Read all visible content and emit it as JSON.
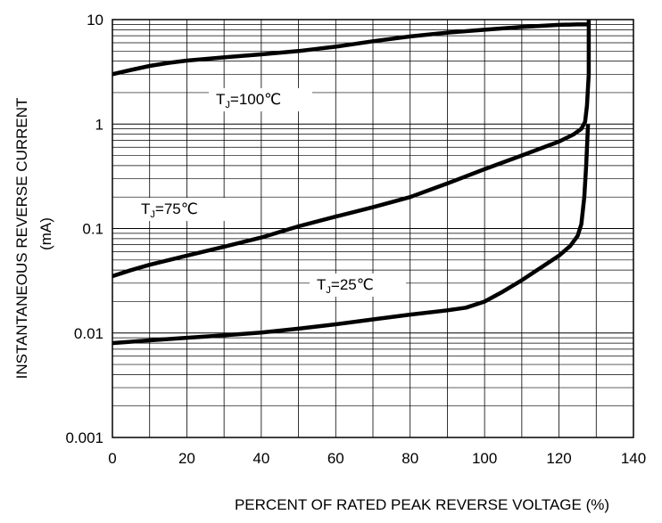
{
  "chart_data": {
    "type": "line",
    "title": "",
    "xlabel": "PERCENT OF RATED PEAK REVERSE VOLTAGE (%)",
    "ylabel": "INSTANTANEOUS REVERSE CURRENT",
    "ylabel_unit": "(mA)",
    "x_range": [
      0,
      140
    ],
    "y_range": [
      0.001,
      10
    ],
    "y_scale": "log",
    "grid": true,
    "x_ticks": [
      0,
      20,
      40,
      60,
      80,
      100,
      120,
      140
    ],
    "x_tick_labels": [
      "0",
      "20",
      "40",
      "60",
      "80",
      "100",
      "120",
      "140"
    ],
    "y_ticks": [
      0.001,
      0.01,
      0.1,
      1,
      10
    ],
    "y_tick_labels": [
      "0.001",
      "0.01",
      "0.1",
      "1",
      "10"
    ],
    "series": [
      {
        "label_main": "T",
        "label_sub": "J",
        "label_rest": "=100℃",
        "points": [
          [
            0,
            3.0
          ],
          [
            5,
            3.3
          ],
          [
            10,
            3.6
          ],
          [
            15,
            3.85
          ],
          [
            20,
            4.05
          ],
          [
            30,
            4.35
          ],
          [
            40,
            4.65
          ],
          [
            50,
            5.0
          ],
          [
            60,
            5.5
          ],
          [
            70,
            6.2
          ],
          [
            80,
            6.9
          ],
          [
            90,
            7.5
          ],
          [
            100,
            8.0
          ],
          [
            110,
            8.5
          ],
          [
            120,
            8.9
          ],
          [
            125,
            9.0
          ],
          [
            128,
            9.0
          ],
          [
            128,
            10.0
          ]
        ]
      },
      {
        "label_main": "T",
        "label_sub": "J",
        "label_rest": "=75℃",
        "points": [
          [
            0,
            0.035
          ],
          [
            5,
            0.04
          ],
          [
            10,
            0.045
          ],
          [
            20,
            0.055
          ],
          [
            30,
            0.067
          ],
          [
            40,
            0.082
          ],
          [
            50,
            0.105
          ],
          [
            60,
            0.13
          ],
          [
            70,
            0.16
          ],
          [
            80,
            0.2
          ],
          [
            90,
            0.27
          ],
          [
            100,
            0.37
          ],
          [
            110,
            0.5
          ],
          [
            120,
            0.68
          ],
          [
            124,
            0.8
          ],
          [
            126,
            0.9
          ],
          [
            127,
            1.05
          ],
          [
            127.5,
            1.5
          ],
          [
            128,
            3.0
          ],
          [
            128,
            9.0
          ]
        ]
      },
      {
        "label_main": "T",
        "label_sub": "J",
        "label_rest": "=25℃",
        "points": [
          [
            0,
            0.008
          ],
          [
            10,
            0.0085
          ],
          [
            20,
            0.009
          ],
          [
            30,
            0.0095
          ],
          [
            40,
            0.0101
          ],
          [
            50,
            0.011
          ],
          [
            60,
            0.0121
          ],
          [
            70,
            0.0135
          ],
          [
            80,
            0.015
          ],
          [
            90,
            0.0165
          ],
          [
            95,
            0.0175
          ],
          [
            100,
            0.02
          ],
          [
            105,
            0.025
          ],
          [
            110,
            0.032
          ],
          [
            115,
            0.042
          ],
          [
            120,
            0.055
          ],
          [
            123,
            0.068
          ],
          [
            125,
            0.085
          ],
          [
            126,
            0.11
          ],
          [
            126.8,
            0.2
          ],
          [
            127.3,
            0.4
          ],
          [
            127.6,
            0.7
          ],
          [
            127.8,
            1.0
          ]
        ]
      }
    ]
  }
}
